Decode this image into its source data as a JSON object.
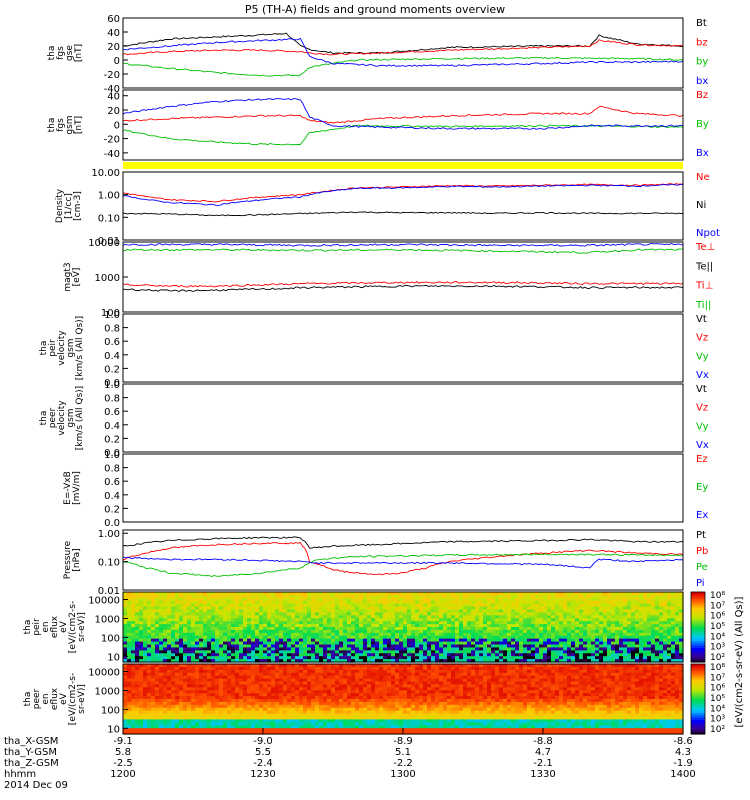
{
  "title": "P5 (TH-A) fields and ground moments overview",
  "chart_data": {
    "type": "line",
    "time_axis": {
      "row_labels": [
        "tha_X-GSM",
        "tha_Y-GSM",
        "tha_Z-GSM",
        "hhmm",
        "2014 Dec 09"
      ],
      "ticks": [
        {
          "x": "-9.1",
          "y": "5.8",
          "z": "-2.5",
          "hhmm": "1200"
        },
        {
          "x": "-9.0",
          "y": "5.5",
          "z": "-2.4",
          "hhmm": "1230"
        },
        {
          "x": "-8.9",
          "y": "5.1",
          "z": "-2.2",
          "hhmm": "1300"
        },
        {
          "x": "-8.8",
          "y": "4.7",
          "z": "-2.1",
          "hhmm": "1330"
        },
        {
          "x": "-8.6",
          "y": "4.3",
          "z": "-1.9",
          "hhmm": "1400"
        }
      ],
      "minutes": [
        0,
        30,
        60,
        90,
        120
      ]
    },
    "panels": [
      {
        "id": "fgs_gse",
        "ylabel": [
          "tha",
          "fgs",
          "gse",
          "[nT]"
        ],
        "yticks": [
          "60",
          "40",
          "20",
          "0",
          "-20",
          "-40"
        ],
        "ylim": [
          -40,
          60
        ],
        "legend": [
          {
            "label": "Bt",
            "color": "#000000"
          },
          {
            "label": "bz",
            "color": "#ff0000"
          },
          {
            "label": "by",
            "color": "#00c000"
          },
          {
            "label": "bx",
            "color": "#0000ff"
          }
        ],
        "series": [
          {
            "color": "#000000",
            "x": [
              0,
              10,
              20,
              30,
              35,
              38,
              40,
              45,
              55,
              70,
              90,
              100,
              102,
              110,
              120
            ],
            "y": [
              20,
              30,
              33,
              36,
              38,
              20,
              15,
              10,
              10,
              18,
              20,
              20,
              35,
              23,
              20
            ]
          },
          {
            "color": "#ff0000",
            "x": [
              0,
              10,
              20,
              30,
              38,
              40,
              45,
              55,
              70,
              90,
              100,
              102,
              110,
              120
            ],
            "y": [
              8,
              12,
              14,
              14,
              12,
              10,
              8,
              10,
              14,
              18,
              20,
              28,
              22,
              20
            ]
          },
          {
            "color": "#00c000",
            "x": [
              0,
              10,
              20,
              30,
              38,
              40,
              50,
              70,
              90,
              110,
              120
            ],
            "y": [
              -5,
              -12,
              -18,
              -22,
              -22,
              -10,
              0,
              2,
              3,
              2,
              0
            ]
          },
          {
            "color": "#0000ff",
            "x": [
              0,
              10,
              20,
              30,
              38,
              40,
              45,
              55,
              70,
              90,
              100,
              110,
              120
            ],
            "y": [
              15,
              20,
              25,
              28,
              30,
              5,
              -5,
              -8,
              -8,
              -5,
              -3,
              -3,
              -2
            ]
          }
        ]
      },
      {
        "id": "fgs_gsm",
        "ylabel": [
          "tha",
          "fgs",
          "gsm",
          "[nT]"
        ],
        "yticks": [
          "40",
          "20",
          "0",
          "-20",
          "-40"
        ],
        "ylim": [
          -50,
          48
        ],
        "legend": [
          {
            "label": "Bz",
            "color": "#ff0000"
          },
          {
            "label": "By",
            "color": "#00c000"
          },
          {
            "label": "Bx",
            "color": "#0000ff"
          }
        ],
        "series": [
          {
            "color": "#ff0000",
            "x": [
              0,
              10,
              20,
              30,
              38,
              40,
              45,
              55,
              70,
              90,
              100,
              102,
              110,
              120
            ],
            "y": [
              5,
              8,
              10,
              12,
              12,
              5,
              2,
              8,
              12,
              15,
              15,
              25,
              15,
              12
            ]
          },
          {
            "color": "#00c000",
            "x": [
              0,
              10,
              20,
              30,
              38,
              40,
              50,
              70,
              90,
              110,
              120
            ],
            "y": [
              -8,
              -20,
              -25,
              -28,
              -28,
              -12,
              -2,
              -3,
              -2,
              -3,
              -4
            ]
          },
          {
            "color": "#0000ff",
            "x": [
              0,
              10,
              20,
              30,
              38,
              40,
              45,
              55,
              70,
              90,
              100,
              110,
              120
            ],
            "y": [
              15,
              25,
              32,
              35,
              35,
              10,
              -2,
              -4,
              -6,
              -6,
              -2,
              -2,
              -2
            ]
          }
        ]
      },
      {
        "id": "density",
        "ylabel": [
          "Density",
          "[1/cc]",
          "[cm-3]"
        ],
        "yticks": [
          "10.00",
          "1.00",
          "0.10",
          "0.01"
        ],
        "ylim": [
          0.01,
          10
        ],
        "log": true,
        "legend": [
          {
            "label": "Ne",
            "color": "#ff0000"
          },
          {
            "label": "Ni",
            "color": "#000000"
          },
          {
            "label": "Npot",
            "color": "#0000ff"
          }
        ],
        "series": [
          {
            "color": "#ff0000",
            "x": [
              0,
              5,
              10,
              20,
              30,
              38,
              42,
              50,
              60,
              70,
              80,
              90,
              100,
              110,
              120
            ],
            "y": [
              1.2,
              0.8,
              0.6,
              0.5,
              0.8,
              1.0,
              1.3,
              2.0,
              2.2,
              2.5,
              2.4,
              2.6,
              2.8,
              2.6,
              3.0
            ]
          },
          {
            "color": "#0000ff",
            "x": [
              0,
              5,
              10,
              20,
              30,
              38,
              42,
              50,
              60,
              70,
              80,
              90,
              100,
              110,
              120
            ],
            "y": [
              0.9,
              0.6,
              0.45,
              0.35,
              0.6,
              0.8,
              1.2,
              1.9,
              2.0,
              2.3,
              2.2,
              2.4,
              2.6,
              2.4,
              2.8
            ]
          },
          {
            "color": "#000000",
            "x": [
              0,
              10,
              20,
              30,
              40,
              50,
              60,
              70,
              80,
              90,
              100,
              110,
              120
            ],
            "y": [
              0.15,
              0.14,
              0.12,
              0.13,
              0.15,
              0.17,
              0.16,
              0.16,
              0.15,
              0.16,
              0.15,
              0.15,
              0.15
            ]
          }
        ]
      },
      {
        "id": "temperature",
        "ylabel": [
          "magt3",
          "[eV]"
        ],
        "yticks": [
          "10000",
          "1000",
          "100"
        ],
        "ylim": [
          100,
          10000
        ],
        "log": true,
        "legend": [
          {
            "label": "Te⊥",
            "color": "#ff0000"
          },
          {
            "label": "Te||",
            "color": "#000000"
          },
          {
            "label": "Ti⊥",
            "color": "#ff0000"
          },
          {
            "label": "Ti||",
            "color": "#00c000"
          }
        ],
        "series": [
          {
            "color": "#0000ff",
            "x": [
              0,
              20,
              40,
              60,
              80,
              100,
              110,
              120
            ],
            "y": [
              8500,
              8500,
              8000,
              8500,
              8000,
              8000,
              8500,
              8500
            ]
          },
          {
            "color": "#00c000",
            "x": [
              0,
              20,
              40,
              60,
              80,
              100,
              110,
              120
            ],
            "y": [
              6000,
              6000,
              5800,
              6000,
              5500,
              5000,
              6000,
              6000
            ]
          },
          {
            "color": "#ff0000",
            "x": [
              0,
              10,
              20,
              30,
              40,
              60,
              80,
              100,
              120
            ],
            "y": [
              600,
              550,
              550,
              600,
              650,
              700,
              700,
              650,
              650
            ]
          },
          {
            "color": "#000000",
            "x": [
              0,
              10,
              20,
              30,
              40,
              60,
              80,
              100,
              120
            ],
            "y": [
              450,
              400,
              420,
              450,
              500,
              550,
              550,
              500,
              500
            ]
          }
        ]
      },
      {
        "id": "peir_velocity",
        "ylabel": [
          "tha",
          "peir",
          "velocity",
          "gsm",
          "[km/s (All Qs)]"
        ],
        "yticks": [
          "1.0",
          "0.8",
          "0.6",
          "0.4",
          "0.2",
          "0.0"
        ],
        "ylim": [
          0,
          1
        ],
        "legend": [
          {
            "label": "Vt",
            "color": "#000000"
          },
          {
            "label": "Vz",
            "color": "#ff0000"
          },
          {
            "label": "Vy",
            "color": "#00c000"
          },
          {
            "label": "Vx",
            "color": "#0000ff"
          }
        ],
        "series": []
      },
      {
        "id": "peer_velocity",
        "ylabel": [
          "tha",
          "peer",
          "velocity",
          "gsm",
          "[km/s (All Qs)]"
        ],
        "yticks": [
          "1.0",
          "0.8",
          "0.6",
          "0.4",
          "0.2",
          "0.0"
        ],
        "ylim": [
          0,
          1
        ],
        "legend": [
          {
            "label": "Vt",
            "color": "#000000"
          },
          {
            "label": "Vz",
            "color": "#ff0000"
          },
          {
            "label": "Vy",
            "color": "#00c000"
          },
          {
            "label": "Vx",
            "color": "#0000ff"
          }
        ],
        "series": []
      },
      {
        "id": "efield",
        "ylabel": [
          "E=-VxB",
          "[mV/m]"
        ],
        "yticks": [
          "1.0",
          "0.8",
          "0.6",
          "0.4",
          "0.2",
          "0.0"
        ],
        "ylim": [
          0,
          1
        ],
        "legend": [
          {
            "label": "Ez",
            "color": "#ff0000"
          },
          {
            "label": "Ey",
            "color": "#00c000"
          },
          {
            "label": "Ex",
            "color": "#0000ff"
          }
        ],
        "series": []
      },
      {
        "id": "pressure",
        "ylabel": [
          "Pressure",
          "[nPa]"
        ],
        "yticks": [
          "1.00",
          "0.10",
          "0.01"
        ],
        "ylim": [
          0.01,
          1.3
        ],
        "log": true,
        "legend": [
          {
            "label": "Pt",
            "color": "#000000"
          },
          {
            "label": "Pb",
            "color": "#ff0000"
          },
          {
            "label": "Pe",
            "color": "#00c000"
          },
          {
            "label": "Pi",
            "color": "#0000ff"
          }
        ],
        "series": [
          {
            "color": "#000000",
            "x": [
              0,
              5,
              10,
              20,
              30,
              38,
              40,
              45,
              55,
              70,
              90,
              100,
              110,
              120
            ],
            "y": [
              0.35,
              0.45,
              0.55,
              0.65,
              0.7,
              0.7,
              0.3,
              0.35,
              0.4,
              0.5,
              0.55,
              0.6,
              0.5,
              0.5
            ]
          },
          {
            "color": "#ff0000",
            "x": [
              0,
              5,
              10,
              20,
              30,
              38,
              40,
              45,
              50,
              55,
              60,
              65,
              70,
              80,
              90,
              100,
              110,
              120
            ],
            "y": [
              0.12,
              0.2,
              0.3,
              0.4,
              0.45,
              0.45,
              0.1,
              0.05,
              0.04,
              0.035,
              0.04,
              0.06,
              0.1,
              0.15,
              0.2,
              0.25,
              0.2,
              0.18
            ]
          },
          {
            "color": "#00c000",
            "x": [
              0,
              5,
              10,
              20,
              30,
              38,
              42,
              50,
              70,
              90,
              100,
              110,
              120
            ],
            "y": [
              0.1,
              0.06,
              0.04,
              0.03,
              0.04,
              0.06,
              0.12,
              0.15,
              0.17,
              0.18,
              0.18,
              0.17,
              0.17
            ]
          },
          {
            "color": "#0000ff",
            "x": [
              0,
              10,
              20,
              30,
              38,
              42,
              50,
              70,
              90,
              100,
              102,
              110,
              120
            ],
            "y": [
              0.14,
              0.12,
              0.12,
              0.11,
              0.1,
              0.09,
              0.09,
              0.09,
              0.08,
              0.06,
              0.12,
              0.1,
              0.12
            ]
          }
        ]
      },
      {
        "id": "peir_spec",
        "type": "heatmap",
        "ylabel": [
          "tha",
          "peir",
          "en",
          "eflux",
          "eV",
          "[eV/(cm2-s-",
          "sr-eV)]"
        ],
        "yticks": [
          "10000",
          "1000",
          "100",
          "10"
        ],
        "ylim": [
          5,
          25000
        ],
        "log": true,
        "colorbar_ticks": [
          "10⁸",
          "10⁷",
          "10⁶",
          "10⁵",
          "10⁴",
          "10³",
          "10²"
        ]
      },
      {
        "id": "peer_spec",
        "type": "heatmap",
        "ylabel": [
          "tha",
          "peer",
          "en",
          "eflux",
          "eV",
          "[eV/(cm2-s-",
          "sr-eV)]"
        ],
        "yticks": [
          "10000",
          "1000",
          "100",
          "10"
        ],
        "ylim": [
          5,
          25000
        ],
        "log": true,
        "colorbar_ticks": [
          "10⁸",
          "10⁷",
          "10⁶",
          "10⁵",
          "10⁴",
          "10³",
          "10²"
        ]
      }
    ],
    "colorbar_label": "[eV/(cm2-s-sr-eV) (All Qs)]",
    "flags_bar_color": "#ffff00"
  }
}
